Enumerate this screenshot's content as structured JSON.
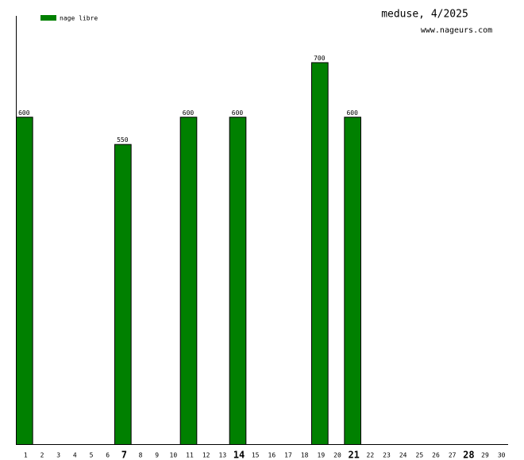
{
  "chart_data": {
    "type": "bar",
    "title": "meduse, 4/2025",
    "subtitle": "www.nageurs.com",
    "categories": [
      "1",
      "2",
      "3",
      "4",
      "5",
      "6",
      "7",
      "8",
      "9",
      "10",
      "11",
      "12",
      "13",
      "14",
      "15",
      "16",
      "17",
      "18",
      "19",
      "20",
      "21",
      "22",
      "23",
      "24",
      "25",
      "26",
      "27",
      "28",
      "29",
      "30"
    ],
    "series": [
      {
        "name": "nage libre",
        "color": "#008000",
        "values": [
          600,
          null,
          null,
          null,
          null,
          null,
          550,
          null,
          null,
          null,
          600,
          null,
          null,
          600,
          null,
          null,
          null,
          null,
          700,
          null,
          600,
          null,
          null,
          null,
          null,
          null,
          null,
          null,
          null,
          null
        ]
      }
    ],
    "ylim": [
      0,
      785
    ],
    "bold_every": 7
  }
}
